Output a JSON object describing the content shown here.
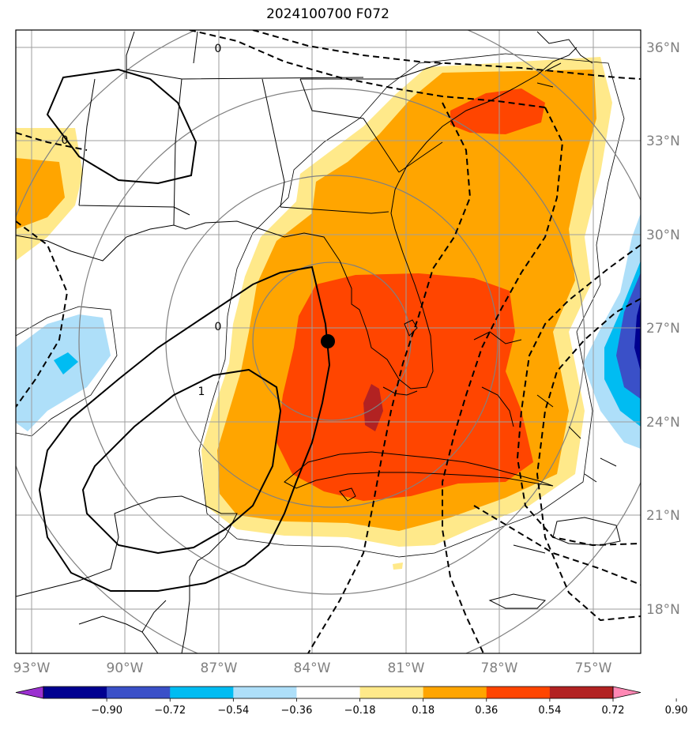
{
  "title": "2024100700 F072",
  "map": {
    "lat_labels": [
      "36°N",
      "33°N",
      "30°N",
      "27°N",
      "24°N",
      "21°N",
      "18°N"
    ],
    "lon_labels": [
      "93°W",
      "90°W",
      "87°W",
      "84°W",
      "81°W",
      "78°W",
      "75°W"
    ],
    "contour_labels": [
      "0",
      "0",
      "0",
      "1"
    ],
    "storm_marker": "storm-center"
  },
  "colorbar": {
    "labels": [
      "−0.90",
      "−0.72",
      "−0.54",
      "−0.36",
      "−0.18",
      "0.18",
      "0.36",
      "0.54",
      "0.72",
      "0.90"
    ],
    "colors": [
      "#9b30d0",
      "#000090",
      "#3a50c8",
      "#00bcf2",
      "#aedff9",
      "#ffffff",
      "#ffe98a",
      "#ffa500",
      "#ff4500",
      "#b22222",
      "#ff88b4"
    ]
  },
  "fill_colors": {
    "light_yellow": "#ffe98a",
    "orange": "#ffa500",
    "red_orange": "#ff4500",
    "dark_red": "#b22222",
    "light_blue": "#aedff9",
    "cyan": "#00bcf2",
    "royal_blue": "#3a50c8",
    "navy": "#000090"
  }
}
